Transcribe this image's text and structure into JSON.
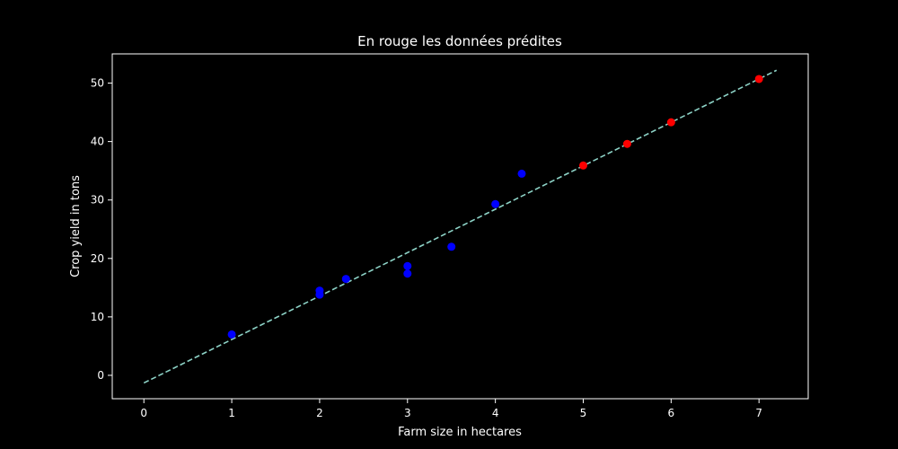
{
  "chart_data": {
    "type": "scatter",
    "title": "En rouge les données prédites",
    "xlabel": "Farm size in hectares",
    "ylabel": "Crop yield in tons",
    "xlim": [
      -0.36,
      7.56
    ],
    "ylim": [
      -4,
      55
    ],
    "xticks": [
      0,
      1,
      2,
      3,
      4,
      5,
      6,
      7
    ],
    "yticks": [
      0,
      10,
      20,
      30,
      40,
      50
    ],
    "grid": false,
    "background": "#000000",
    "series": [
      {
        "kind": "observed",
        "color": "#0000ff",
        "points": [
          {
            "x": 1.0,
            "y": 7.0
          },
          {
            "x": 2.0,
            "y": 14.5
          },
          {
            "x": 2.0,
            "y": 13.8
          },
          {
            "x": 2.3,
            "y": 16.5
          },
          {
            "x": 3.0,
            "y": 18.7
          },
          {
            "x": 3.0,
            "y": 17.4
          },
          {
            "x": 3.5,
            "y": 22.0
          },
          {
            "x": 4.0,
            "y": 29.3
          },
          {
            "x": 4.3,
            "y": 34.5
          }
        ]
      },
      {
        "kind": "predicted",
        "color": "#ff0000",
        "points": [
          {
            "x": 5.0,
            "y": 35.9
          },
          {
            "x": 5.5,
            "y": 39.6
          },
          {
            "x": 6.0,
            "y": 43.3
          },
          {
            "x": 7.0,
            "y": 50.7
          }
        ]
      },
      {
        "kind": "regression-line",
        "style": "dashed",
        "color": "#8dd3c7",
        "x": [
          0,
          7.2
        ],
        "y": [
          -1.3,
          52.2
        ]
      }
    ]
  }
}
